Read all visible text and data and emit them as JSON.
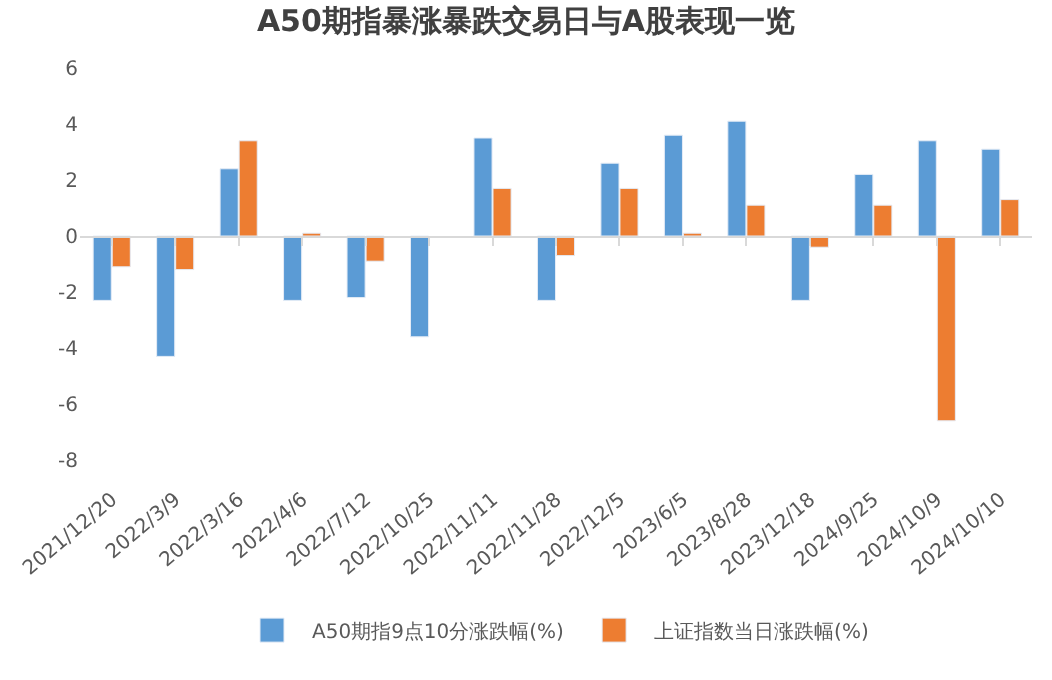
{
  "chart_data": {
    "type": "bar",
    "title": "A50期指暴涨暴跌交易日与A股表现一览",
    "categories": [
      "2021/12/20",
      "2022/3/9",
      "2022/3/16",
      "2022/4/6",
      "2022/7/12",
      "2022/10/25",
      "2022/11/11",
      "2022/11/28",
      "2022/12/5",
      "2023/6/5",
      "2023/8/28",
      "2023/12/18",
      "2024/9/25",
      "2024/10/9",
      "2024/10/10"
    ],
    "series": [
      {
        "name": "A50期指9点10分涨跌幅(%)",
        "color": "#5b9bd5",
        "values": [
          -2.3,
          -4.3,
          2.4,
          -2.3,
          -2.2,
          -3.6,
          3.5,
          -2.3,
          2.6,
          3.6,
          4.1,
          -2.3,
          2.2,
          3.4,
          3.1
        ]
      },
      {
        "name": "上证指数当日涨跌幅(%)",
        "color": "#ed7d31",
        "values": [
          -1.1,
          -1.2,
          3.4,
          0.1,
          -0.9,
          null,
          1.7,
          -0.7,
          1.7,
          0.1,
          1.1,
          -0.4,
          1.1,
          -6.6,
          1.3
        ]
      }
    ],
    "ylim": [
      -8,
      6
    ],
    "yticks": [
      -8,
      -6,
      -4,
      -2,
      0,
      2,
      4,
      6
    ],
    "legend": "bottom"
  }
}
